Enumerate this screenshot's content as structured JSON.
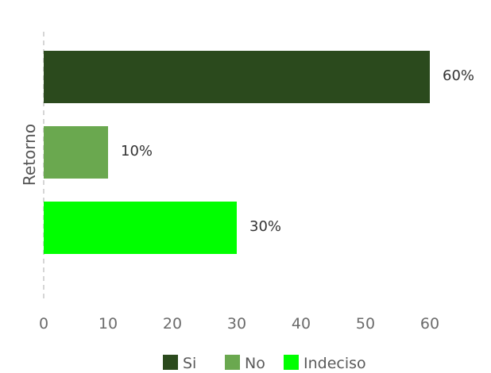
{
  "chart_data": {
    "type": "bar",
    "orientation": "horizontal",
    "category_label": "Retorno",
    "series": [
      {
        "name": "Si",
        "value": 60,
        "label": "60%",
        "color": "#2b4a1d"
      },
      {
        "name": "No",
        "value": 10,
        "label": "10%",
        "color": "#6aa84f"
      },
      {
        "name": "Indeciso",
        "value": 30,
        "label": "30%",
        "color": "#00ff00"
      }
    ],
    "x_ticks": [
      "0",
      "10",
      "20",
      "30",
      "40",
      "50",
      "60"
    ],
    "xlim": [
      0,
      60
    ],
    "legend_position": "bottom",
    "grid": false
  }
}
